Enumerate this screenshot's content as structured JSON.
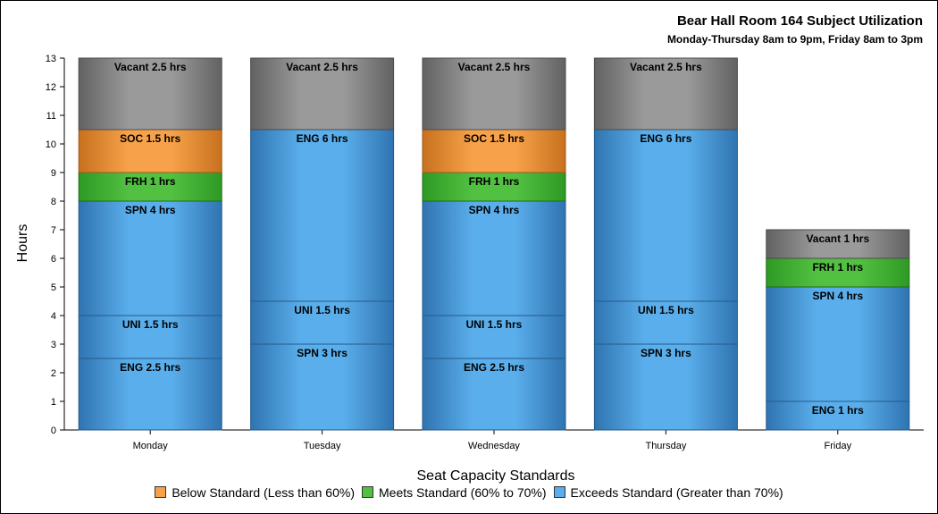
{
  "chart_data": {
    "type": "bar",
    "stacked": true,
    "title": "Bear Hall Room 164 Subject Utilization",
    "subtitle": "Monday-Thursday 8am to 9pm, Friday 8am to 3pm",
    "xlabel": "Seat Capacity Standards",
    "ylabel": "Hours",
    "ylim": [
      0,
      13
    ],
    "yticks": [
      0,
      1,
      2,
      3,
      4,
      5,
      6,
      7,
      8,
      9,
      10,
      11,
      12,
      13
    ],
    "grid": false,
    "legend_position": "bottom",
    "categories": [
      "Monday",
      "Tuesday",
      "Wednesday",
      "Thursday",
      "Friday"
    ],
    "stacks": [
      {
        "category": "Monday",
        "segments": [
          {
            "label": "ENG 2.5 hrs",
            "value": 2.5,
            "type": "exceeds"
          },
          {
            "label": "UNI 1.5 hrs",
            "value": 1.5,
            "type": "exceeds"
          },
          {
            "label": "SPN 4 hrs",
            "value": 4,
            "type": "exceeds"
          },
          {
            "label": "FRH 1 hrs",
            "value": 1,
            "type": "meets"
          },
          {
            "label": "SOC 1.5 hrs",
            "value": 1.5,
            "type": "below"
          },
          {
            "label": "Vacant 2.5 hrs",
            "value": 2.5,
            "type": "vacant"
          }
        ]
      },
      {
        "category": "Tuesday",
        "segments": [
          {
            "label": "SPN 3 hrs",
            "value": 3,
            "type": "exceeds"
          },
          {
            "label": "UNI 1.5 hrs",
            "value": 1.5,
            "type": "exceeds"
          },
          {
            "label": "ENG 6 hrs",
            "value": 6,
            "type": "exceeds"
          },
          {
            "label": "Vacant 2.5 hrs",
            "value": 2.5,
            "type": "vacant"
          }
        ]
      },
      {
        "category": "Wednesday",
        "segments": [
          {
            "label": "ENG 2.5 hrs",
            "value": 2.5,
            "type": "exceeds"
          },
          {
            "label": "UNI 1.5 hrs",
            "value": 1.5,
            "type": "exceeds"
          },
          {
            "label": "SPN 4 hrs",
            "value": 4,
            "type": "exceeds"
          },
          {
            "label": "FRH 1 hrs",
            "value": 1,
            "type": "meets"
          },
          {
            "label": "SOC 1.5 hrs",
            "value": 1.5,
            "type": "below"
          },
          {
            "label": "Vacant 2.5 hrs",
            "value": 2.5,
            "type": "vacant"
          }
        ]
      },
      {
        "category": "Thursday",
        "segments": [
          {
            "label": "SPN 3 hrs",
            "value": 3,
            "type": "exceeds"
          },
          {
            "label": "UNI 1.5 hrs",
            "value": 1.5,
            "type": "exceeds"
          },
          {
            "label": "ENG 6 hrs",
            "value": 6,
            "type": "exceeds"
          },
          {
            "label": "Vacant 2.5 hrs",
            "value": 2.5,
            "type": "vacant"
          }
        ]
      },
      {
        "category": "Friday",
        "segments": [
          {
            "label": "ENG 1 hrs",
            "value": 1,
            "type": "exceeds"
          },
          {
            "label": "SPN 4 hrs",
            "value": 4,
            "type": "exceeds"
          },
          {
            "label": "FRH 1 hrs",
            "value": 1,
            "type": "meets"
          },
          {
            "label": "Vacant 1 hrs",
            "value": 1,
            "type": "vacant"
          }
        ]
      }
    ],
    "legend": [
      {
        "label": "Below Standard (Less than 60%)",
        "type": "below"
      },
      {
        "label": "Meets Standard (60% to 70%)",
        "type": "meets"
      },
      {
        "label": "Exceeds Standard (Greater than 70%)",
        "type": "exceeds"
      }
    ],
    "colors": {
      "below": {
        "fill": "#F7A24A",
        "dark": "#C8701E",
        "edge": "#9A5A1A"
      },
      "meets": {
        "fill": "#52C041",
        "dark": "#2E9A25",
        "edge": "#1F6B19"
      },
      "exceeds": {
        "fill": "#5AAEEB",
        "dark": "#2F74B1",
        "edge": "#245A8A"
      },
      "vacant": {
        "fill": "#9A9A9A",
        "dark": "#626262",
        "edge": "#4A4A4A"
      }
    }
  }
}
